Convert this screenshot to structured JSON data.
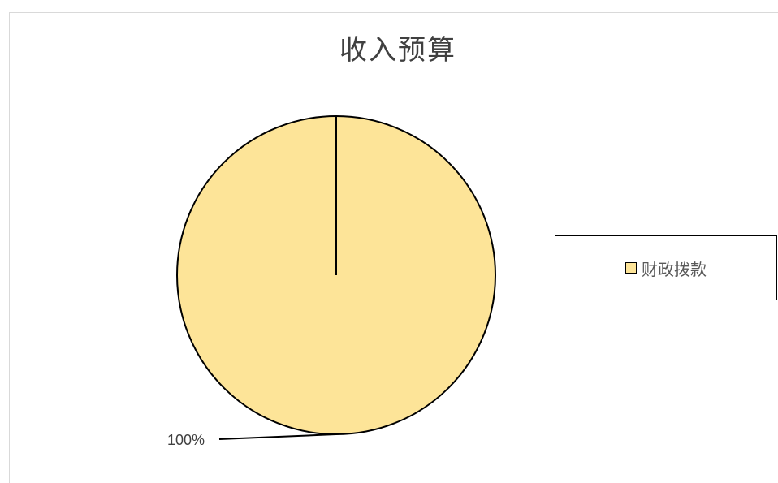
{
  "chart_data": {
    "type": "pie",
    "title": "收入预算",
    "categories": [
      "财政拨款"
    ],
    "values": [
      100
    ],
    "data_labels": [
      "100%"
    ],
    "colors": [
      "#FDE498"
    ],
    "legend_position": "right"
  }
}
